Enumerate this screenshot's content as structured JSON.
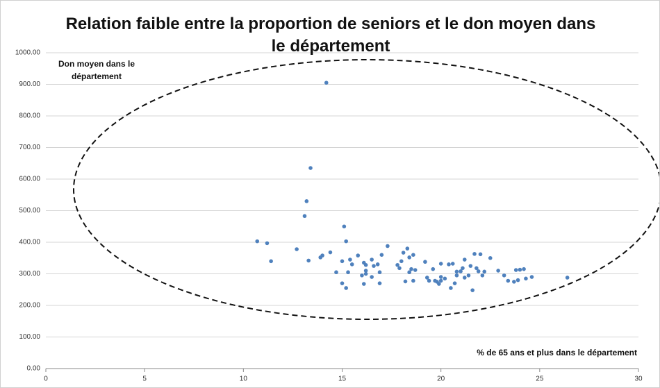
{
  "chart_data": {
    "type": "scatter",
    "title": "Relation faible entre la proportion de seniors et le don moyen dans le département",
    "y_label": "Don moyen dans le département",
    "x_label": "% de 65 ans et plus dans le département",
    "color": "#4f81bd",
    "grid": true,
    "xlim": [
      0,
      30
    ],
    "xticks": [
      0,
      5,
      10,
      15,
      20,
      25,
      30
    ],
    "ylim": [
      0,
      1000
    ],
    "yticks": [
      {
        "value": 0,
        "label": "0.00"
      },
      {
        "value": 100,
        "label": "100.00"
      },
      {
        "value": 200,
        "label": "200.00"
      },
      {
        "value": 300,
        "label": "300.00"
      },
      {
        "value": 400,
        "label": "400.00"
      },
      {
        "value": 500,
        "label": "500.00"
      },
      {
        "value": 600,
        "label": "600.00"
      },
      {
        "value": 700,
        "label": "700.00"
      },
      {
        "value": 800,
        "label": "800.00"
      },
      {
        "value": 900,
        "label": "900.00"
      },
      {
        "value": 1000,
        "label": "1000.00"
      }
    ],
    "x": [
      14.2,
      13.4,
      13.2,
      13.1,
      10.7,
      11.2,
      11.4,
      12.7,
      13.3,
      13.9,
      14.0,
      14.4,
      15.1,
      15.2,
      14.7,
      15.0,
      15.0,
      15.2,
      15.3,
      15.4,
      15.5,
      15.8,
      16.0,
      16.1,
      16.2,
      16.2,
      16.2,
      16.1,
      16.5,
      16.5,
      16.6,
      16.8,
      16.9,
      16.9,
      17.0,
      17.3,
      17.8,
      17.9,
      18.0,
      18.1,
      18.2,
      18.3,
      18.4,
      18.4,
      18.5,
      18.6,
      18.6,
      18.7,
      19.2,
      19.3,
      19.4,
      19.6,
      19.7,
      19.8,
      19.9,
      20.0,
      20.0,
      20.0,
      20.2,
      20.4,
      20.5,
      20.6,
      20.7,
      20.8,
      20.8,
      21.0,
      21.1,
      21.2,
      21.2,
      21.4,
      21.5,
      21.6,
      21.7,
      21.8,
      21.9,
      22.0,
      22.1,
      22.2,
      22.5,
      22.9,
      23.2,
      23.4,
      23.7,
      23.8,
      23.9,
      24.0,
      24.2,
      24.3,
      24.6,
      26.4
    ],
    "values": [
      905,
      635,
      530,
      483,
      403,
      397,
      340,
      378,
      342,
      352,
      358,
      368,
      450,
      403,
      305,
      340,
      270,
      255,
      305,
      345,
      330,
      358,
      295,
      335,
      328,
      310,
      300,
      268,
      345,
      290,
      325,
      330,
      305,
      270,
      360,
      388,
      328,
      318,
      340,
      367,
      276,
      380,
      352,
      305,
      315,
      360,
      278,
      312,
      338,
      288,
      278,
      315,
      278,
      275,
      268,
      332,
      290,
      278,
      285,
      330,
      255,
      332,
      270,
      295,
      307,
      308,
      318,
      345,
      288,
      295,
      325,
      248,
      363,
      318,
      308,
      362,
      295,
      307,
      350,
      310,
      295,
      278,
      275,
      312,
      280,
      313,
      315,
      285,
      290,
      288
    ]
  }
}
